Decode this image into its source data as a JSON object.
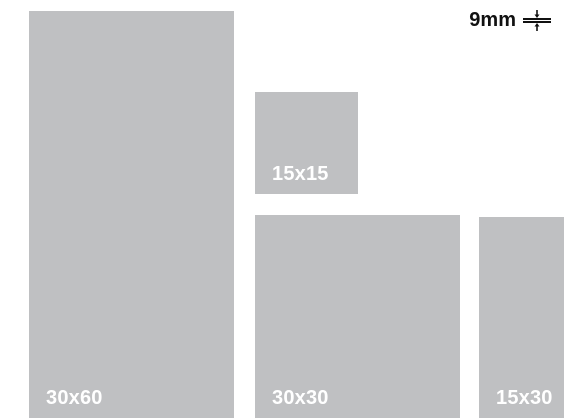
{
  "tiles": [
    {
      "id": "30x60",
      "label": "30x60"
    },
    {
      "id": "15x15",
      "label": "15x15"
    },
    {
      "id": "30x30",
      "label": "30x30"
    },
    {
      "id": "15x30",
      "label": "15x30"
    }
  ],
  "joint": {
    "label": "9mm",
    "icon": "joint-width-icon"
  },
  "colors": {
    "tile": "#bfc0c2",
    "tile_label": "#ffffff",
    "text": "#111111",
    "background": "#ffffff"
  }
}
